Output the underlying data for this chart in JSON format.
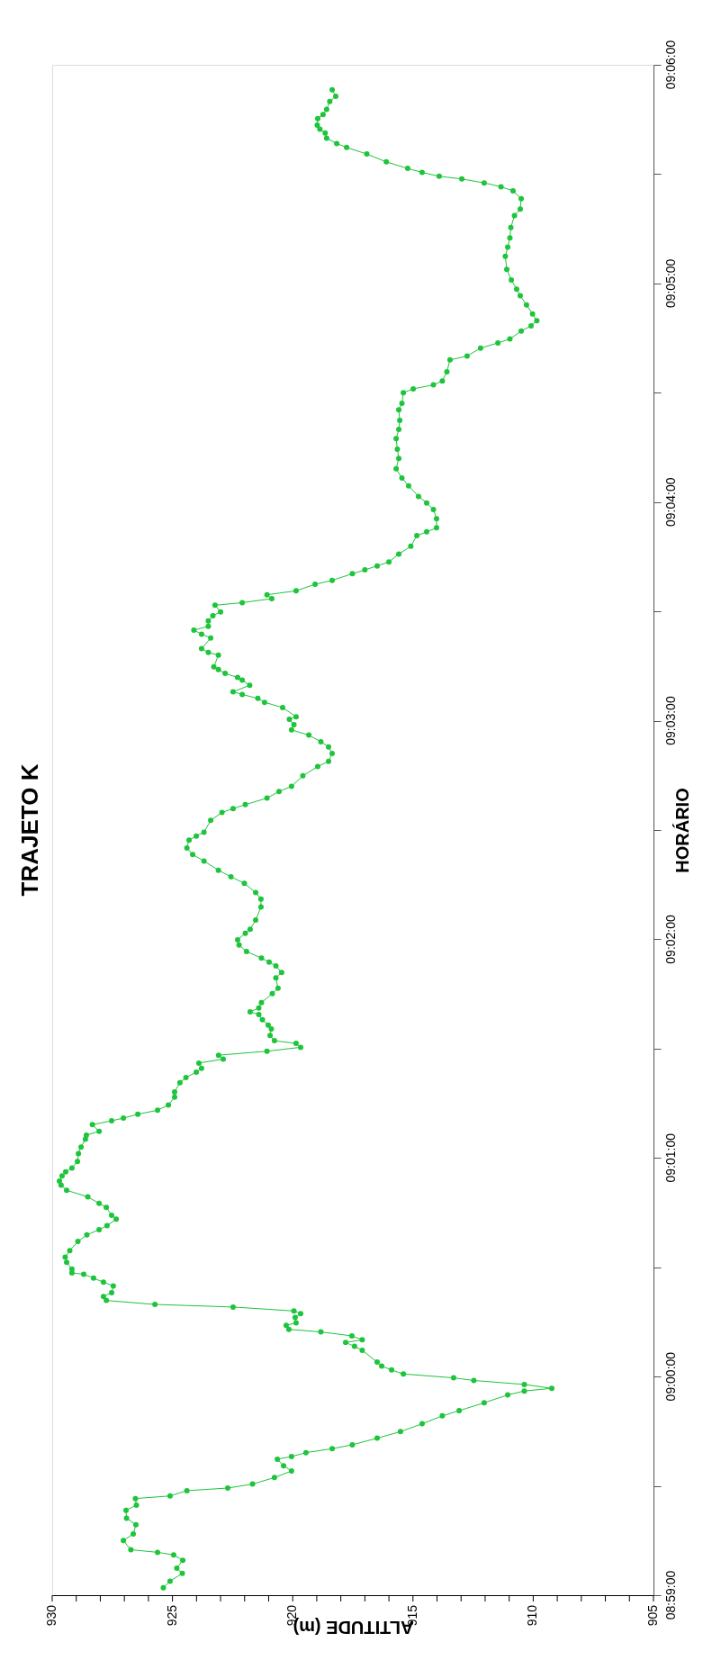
{
  "chart_data": {
    "type": "line",
    "title": "TRAJETO K",
    "xlabel": "ALTITUDE (m)",
    "ylabel": "HORÁRIO",
    "xlim": [
      930,
      905
    ],
    "xticks": [
      930,
      {
        "value": 929,
        "label": null
      },
      {
        "value": 928,
        "label": null
      },
      {
        "value": 927,
        "label": null
      },
      {
        "value": 926,
        "label": null
      },
      925,
      {
        "value": 924,
        "label": null
      },
      {
        "value": 923,
        "label": null
      },
      {
        "value": 922,
        "label": null
      },
      {
        "value": 921,
        "label": null
      },
      920,
      {
        "value": 919,
        "label": null
      },
      {
        "value": 918,
        "label": null
      },
      {
        "value": 917,
        "label": null
      },
      {
        "value": 916,
        "label": null
      },
      915,
      {
        "value": 914,
        "label": null
      },
      {
        "value": 913,
        "label": null
      },
      {
        "value": 912,
        "label": null
      },
      {
        "value": 911,
        "label": null
      },
      910,
      {
        "value": 909,
        "label": null
      },
      {
        "value": 908,
        "label": null
      },
      {
        "value": 907,
        "label": null
      },
      {
        "value": 906,
        "label": null
      },
      905
    ],
    "ylim": [
      8.983333,
      9.1
    ],
    "yticks": [
      {
        "value": 8.983333,
        "label": "08:59:00"
      },
      {
        "value": 8.991667,
        "label": null
      },
      {
        "value": 9,
        "label": "09:00:00"
      },
      {
        "value": 9.008333,
        "label": null
      },
      {
        "value": 9.016667,
        "label": "09:01:00"
      },
      {
        "value": 9.025,
        "label": null
      },
      {
        "value": 9.033333,
        "label": "09:02:00"
      },
      {
        "value": 9.041667,
        "label": null
      },
      {
        "value": 9.05,
        "label": "09:03:00"
      },
      {
        "value": 9.058333,
        "label": null
      },
      {
        "value": 9.066667,
        "label": "09:04:00"
      },
      {
        "value": 9.075,
        "label": null
      },
      {
        "value": 9.083333,
        "label": "09:05:00"
      },
      {
        "value": 9.091667,
        "label": null
      },
      {
        "value": 9.1,
        "label": "09:06:00"
      }
    ],
    "grid": false,
    "legend": false,
    "marker": "circle",
    "line_style": "solid",
    "x": [
      925.38,
      925.1,
      924.59,
      924.82,
      924.57,
      924.95,
      925.62,
      926.73,
      927.04,
      926.63,
      926.52,
      926.91,
      926.93,
      926.5,
      926.54,
      925.1,
      924.4,
      922.7,
      921.67,
      920.76,
      920.05,
      920.38,
      920.64,
      920.05,
      919.45,
      918.36,
      917.52,
      916.49,
      915.52,
      914.62,
      913.78,
      913.08,
      912.04,
      911.06,
      910.37,
      909.23,
      910.37,
      912.47,
      913.31,
      915.4,
      915.89,
      916.3,
      916.49,
      917.11,
      917.43,
      917.8,
      917.11,
      917.54,
      918.83,
      920.16,
      920.27,
      919.86,
      919.9,
      919.67,
      919.95,
      922.48,
      925.73,
      927.75,
      927.87,
      927.53,
      927.46,
      927.87,
      928.28,
      928.69,
      929.18,
      929.18,
      929.4,
      929.46,
      929.27,
      928.93,
      928.56,
      928.05,
      927.72,
      927.34,
      927.53,
      927.75,
      928.05,
      928.52,
      929.4,
      929.63,
      929.7,
      929.59,
      929.44,
      929.18,
      928.95,
      928.91,
      928.8,
      928.62,
      928.58,
      928.05,
      928.33,
      927.53,
      927.04,
      926.44,
      925.62,
      925.17,
      924.91,
      924.91,
      924.69,
      924.44,
      924.01,
      923.79,
      923.9,
      922.89,
      923.08,
      921.07,
      919.67,
      919.86,
      920.76,
      920.94,
      920.89,
      921.02,
      921.26,
      921.41,
      921.77,
      921.41,
      921.3,
      920.85,
      920.61,
      920.7,
      920.46,
      920.7,
      920.98,
      921.3,
      921.92,
      922.23,
      922.29,
      921.97,
      921.77,
      921.54,
      921.32,
      921.32,
      921.54,
      922.01,
      922.57,
      923.09,
      923.69,
      924.16,
      924.4,
      924.31,
      924.01,
      923.69,
      923.41,
      922.94,
      922.48,
      921.97,
      921.07,
      920.57,
      920.05,
      919.58,
      918.96,
      918.51,
      918.36,
      918.51,
      918.83,
      919.33,
      920.05,
      919.95,
      920.14,
      919.86,
      920.42,
      921.17,
      921.45,
      922.1,
      922.48,
      921.79,
      922.1,
      922.29,
      922.81,
      923.09,
      923.28,
      923.09,
      923.51,
      923.79,
      923.41,
      923.79,
      924.11,
      923.51,
      923.51,
      923.32,
      923.0,
      923.23,
      922.1,
      920.87,
      921.07,
      919.86,
      919.07,
      918.36,
      917.52,
      917.0,
      916.49,
      916.0,
      915.59,
      915.09,
      914.84,
      914.43,
      914.02,
      914.02,
      914.15,
      914.43,
      914.77,
      915.18,
      915.46,
      915.7,
      915.59,
      915.65,
      915.7,
      915.59,
      915.55,
      915.59,
      915.46,
      915.4,
      914.99,
      914.15,
      913.78,
      913.59,
      913.46,
      912.75,
      912.19,
      911.47,
      910.97,
      910.5,
      910.09,
      909.85,
      910.03,
      910.28,
      910.54,
      910.69,
      910.91,
      911.1,
      911.16,
      911.06,
      910.97,
      910.93,
      910.78,
      910.54,
      910.5,
      910.84,
      911.34,
      912.04,
      912.97,
      913.91,
      914.62,
      915.22,
      916.11,
      916.92,
      917.76,
      918.17,
      918.59,
      918.65,
      918.87,
      918.98,
      918.96,
      918.74,
      918.59,
      918.46,
      918.21,
      918.36
    ],
    "series": [
      {
        "color": "#1ec43c",
        "values": [
          8.9839,
          8.9844,
          8.985,
          8.9854,
          8.986,
          8.9864,
          8.9866,
          8.9868,
          8.9875,
          8.988,
          8.9887,
          8.9892,
          8.9898,
          8.9902,
          8.9907,
          8.9909,
          8.9913,
          8.9915,
          8.9918,
          8.9923,
          8.9928,
          8.9932,
          8.9937,
          8.9939,
          8.9942,
          8.9945,
          8.9948,
          8.9953,
          8.9958,
          8.9964,
          8.997,
          8.9974,
          8.998,
          8.9986,
          8.9989,
          8.9991,
          8.9994,
          8.9997,
          8.9999,
          9.0002,
          9.0005,
          9.0008,
          9.0011,
          9.002,
          9.0023,
          9.0026,
          9.0028,
          9.0031,
          9.0034,
          9.0036,
          9.0039,
          9.0041,
          9.0045,
          9.0048,
          9.005,
          9.0053,
          9.0055,
          9.0058,
          9.0061,
          9.0064,
          9.0069,
          9.0072,
          9.0075,
          9.0078,
          9.0079,
          9.0082,
          9.0087,
          9.0091,
          9.0096,
          9.0103,
          9.0108,
          9.0112,
          9.0115,
          9.012,
          9.0123,
          9.0129,
          9.0132,
          9.0137,
          9.0142,
          9.0146,
          9.0149,
          9.0153,
          9.0156,
          9.0159,
          9.0164,
          9.017,
          9.0175,
          9.0181,
          9.0184,
          9.0187,
          9.0192,
          9.0195,
          9.0197,
          9.02,
          9.0203,
          9.0207,
          9.0213,
          9.0217,
          9.0224,
          9.0228,
          9.0232,
          9.0235,
          9.0239,
          9.0242,
          9.0245,
          9.0248,
          9.0251,
          9.0254,
          9.0256,
          9.026,
          9.0265,
          9.0268,
          9.0272,
          9.0276,
          9.0278,
          9.0281,
          9.0285,
          9.0292,
          9.0296,
          9.0304,
          9.0308,
          9.0313,
          9.0316,
          9.0319,
          9.0324,
          9.0329,
          9.0333,
          9.0338,
          9.0341,
          9.0348,
          9.0358,
          9.0364,
          9.0369,
          9.0376,
          9.0381,
          9.0386,
          9.0393,
          9.0398,
          9.0403,
          9.0409,
          9.0412,
          9.0415,
          9.0424,
          9.043,
          9.0433,
          9.0436,
          9.0441,
          9.0446,
          9.045,
          9.0458,
          9.0465,
          9.0469,
          9.0475,
          9.048,
          9.0484,
          9.0489,
          9.0493,
          9.0497,
          9.0501,
          9.0503,
          9.051,
          9.0514,
          9.0517,
          9.052,
          9.0522,
          9.0527,
          9.0531,
          9.0533,
          9.0536,
          9.0539,
          9.0541,
          9.055,
          9.0552,
          9.0555,
          9.0563,
          9.0566,
          9.0569,
          9.0572,
          9.0576,
          9.058,
          9.0583,
          9.0588,
          9.059,
          9.0593,
          9.0596,
          9.0599,
          9.0604,
          9.0607,
          9.0612,
          9.0615,
          9.0618,
          9.0621,
          9.0627,
          9.0633,
          9.0641,
          9.0644,
          9.0647,
          9.0654,
          9.0661,
          9.0666,
          9.0671,
          9.0679,
          9.0685,
          9.0692,
          9.07,
          9.0707,
          9.0715,
          9.0722,
          9.0729,
          9.0737,
          9.0742,
          9.075,
          9.0753,
          9.0756,
          9.0759,
          9.0766,
          9.0775,
          9.0778,
          9.0784,
          9.0788,
          9.0791,
          9.0797,
          9.0801,
          9.0805,
          9.081,
          9.0817,
          9.0824,
          9.0829,
          9.0836,
          9.0844,
          9.0854,
          9.0861,
          9.0868,
          9.0876,
          9.0885,
          9.089,
          9.0898,
          9.0904,
          9.0907,
          9.091,
          9.0913,
          9.0915,
          9.0918,
          9.0921,
          9.0926,
          9.0932,
          9.0937,
          9.094,
          9.0944,
          9.0948,
          9.0951,
          9.0954,
          9.0959,
          9.0962,
          9.0966,
          9.0972,
          9.0976,
          9.0981
        ]
      }
    ]
  }
}
